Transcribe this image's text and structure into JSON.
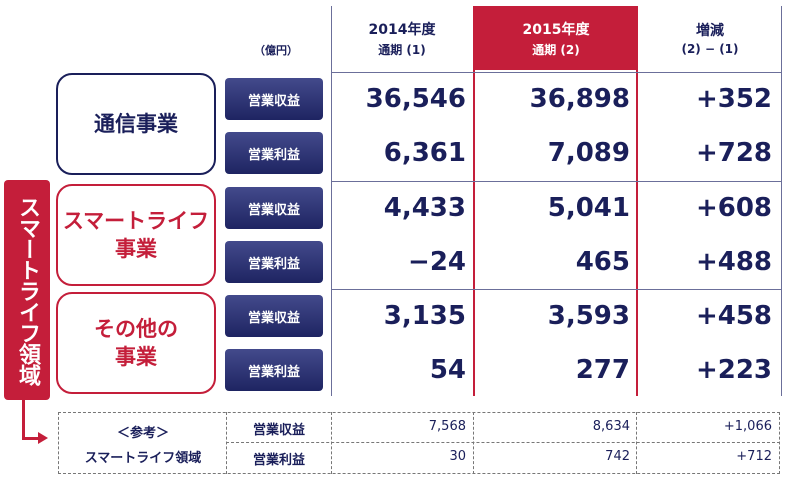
{
  "header": {
    "unit": "（億円）",
    "col2014_line1": "2014年度",
    "col2014_line2": "通期 (1)",
    "col2015_line1": "2015年度",
    "col2015_line2": "通期 (2)",
    "colDiff_line1": "増減",
    "colDiff_line2": "(2) − (1)"
  },
  "banner": "スマートライフ領域",
  "segments": [
    {
      "name_line1": "通信事業",
      "name_line2": "",
      "rows": [
        {
          "metric": "営業収益",
          "v2014": "36,546",
          "v2015": "36,898",
          "diff": "+352"
        },
        {
          "metric": "営業利益",
          "v2014": "6,361",
          "v2015": "7,089",
          "diff": "+728"
        }
      ]
    },
    {
      "name_line1": "スマートライフ",
      "name_line2": "事業",
      "rows": [
        {
          "metric": "営業収益",
          "v2014": "4,433",
          "v2015": "5,041",
          "diff": "+608"
        },
        {
          "metric": "営業利益",
          "v2014": "−24",
          "v2015": "465",
          "diff": "+488"
        }
      ]
    },
    {
      "name_line1": "その他の",
      "name_line2": "事業",
      "rows": [
        {
          "metric": "営業収益",
          "v2014": "3,135",
          "v2015": "3,593",
          "diff": "+458"
        },
        {
          "metric": "営業利益",
          "v2014": "54",
          "v2015": "277",
          "diff": "+223"
        }
      ]
    }
  ],
  "reference": {
    "title_line1": "＜参考＞",
    "title_line2": "スマートライフ領域",
    "rows": [
      {
        "metric": "営業収益",
        "v2014": "7,568",
        "v2015": "8,634",
        "diff": "+1,066"
      },
      {
        "metric": "営業利益",
        "v2014": "30",
        "v2015": "742",
        "diff": "+712"
      }
    ]
  },
  "colors": {
    "navy": "#1a1f5a",
    "red": "#c41e3a"
  }
}
